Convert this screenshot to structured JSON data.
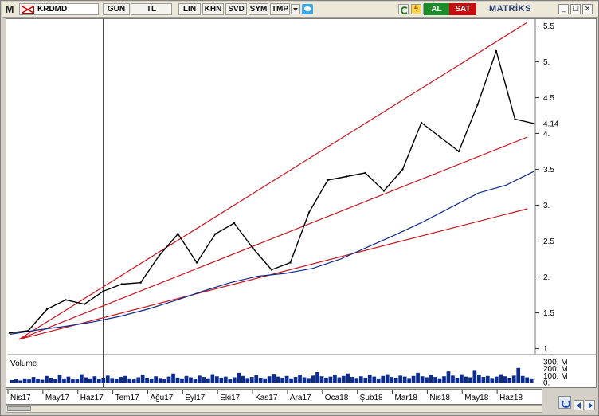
{
  "toolbar": {
    "app_letter": "M",
    "symbol": "KRDMD",
    "buttons": [
      "GUN",
      "TL",
      "LIN",
      "KHN",
      "SVD",
      "SYM",
      "TMP"
    ],
    "buy_label": "AL",
    "sell_label": "SAT",
    "brand": "MATRİKS",
    "window_buttons": [
      "_",
      "□",
      "×"
    ],
    "colors": {
      "buy": "#1c8c2a",
      "sell": "#c40e0e",
      "brand": "#2b3d7a"
    }
  },
  "chart_data": {
    "type": "line",
    "price_axis_ticks": [
      "5.5",
      "5.",
      "4.5",
      "4.",
      "3.5",
      "3.",
      "2.5",
      "2.",
      "1.5",
      "1."
    ],
    "ylim": [
      0.95,
      5.55
    ],
    "last_price": "4.14",
    "x_tick_labels": [
      "Nis17",
      "May17",
      "Haz17",
      "Tem17",
      "Ağu17",
      "Eyl17",
      "Eki17",
      "Kas17",
      "Ara17",
      "Oca18",
      "Şub18",
      "Mar18",
      "Nis18",
      "May18",
      "Haz18"
    ],
    "price_series": {
      "name": "",
      "x": [
        "Nis17",
        "May17",
        "May17",
        "Haz17",
        "Haz17",
        "Tem17",
        "Tem17",
        "Ağu17",
        "Ağu17",
        "Eyl17",
        "Eyl17",
        "Eki17",
        "Eki17",
        "Kas17",
        "Kas17",
        "Ara17",
        "Ara17",
        "Oca18",
        "Oca18",
        "Şub18",
        "Şub18",
        "Mar18",
        "Mar18",
        "Nis18",
        "Nis18",
        "May18",
        "May18",
        "Haz18",
        "Haz18"
      ],
      "values": [
        1.22,
        1.25,
        1.55,
        1.68,
        1.62,
        1.8,
        1.9,
        1.92,
        2.3,
        2.6,
        2.2,
        2.6,
        2.75,
        2.4,
        2.1,
        2.2,
        2.9,
        3.35,
        3.4,
        3.45,
        3.2,
        3.5,
        4.15,
        3.95,
        3.75,
        4.4,
        5.15,
        4.2,
        4.14
      ]
    },
    "moving_average": {
      "color": "#0c2a8a",
      "values": [
        1.2,
        1.26,
        1.31,
        1.37,
        1.45,
        1.55,
        1.67,
        1.8,
        1.92,
        2.01,
        2.05,
        2.12,
        2.25,
        2.42,
        2.59,
        2.77,
        2.97,
        3.17,
        3.28,
        3.47
      ]
    },
    "trendlines": [
      {
        "color": "#c8141e",
        "from": [
          "Nis17",
          1.13
        ],
        "to": [
          "Haz18",
          5.55
        ]
      },
      {
        "color": "#c8141e",
        "from": [
          "Nis17",
          1.13
        ],
        "to": [
          "Haz18",
          3.95
        ]
      },
      {
        "color": "#c8141e",
        "from": [
          "Nis17",
          1.13
        ],
        "to": [
          "Haz18",
          2.95
        ]
      }
    ],
    "volume": {
      "title": "Volume",
      "ticks": [
        "300. M",
        "200. M",
        "100. M",
        "0."
      ],
      "ylim": [
        0,
        300
      ],
      "values": [
        35,
        50,
        30,
        60,
        45,
        80,
        55,
        40,
        95,
        70,
        50,
        110,
        60,
        85,
        45,
        55,
        120,
        75,
        60,
        90,
        50,
        70,
        100,
        65,
        55,
        80,
        95,
        60,
        45,
        75,
        110,
        70,
        55,
        90,
        65,
        50,
        85,
        130,
        70,
        60,
        95,
        75,
        55,
        100,
        80,
        60,
        120,
        90,
        70,
        85,
        55,
        75,
        140,
        95,
        65,
        80,
        105,
        70,
        60,
        90,
        125,
        85,
        70,
        95,
        60,
        80,
        115,
        75,
        65,
        100,
        150,
        90,
        70,
        85,
        110,
        75,
        95,
        130,
        80,
        65,
        90,
        70,
        110,
        85,
        60,
        95,
        120,
        80,
        70,
        100,
        85,
        65,
        95,
        140,
        90,
        75,
        110,
        80,
        60,
        90,
        160,
        100,
        70,
        120,
        85,
        75,
        180,
        110,
        80,
        95,
        65,
        85,
        120,
        90,
        70,
        100,
        210,
        95,
        75,
        60
      ]
    },
    "cursor_date": "Haz17",
    "grid": false
  }
}
